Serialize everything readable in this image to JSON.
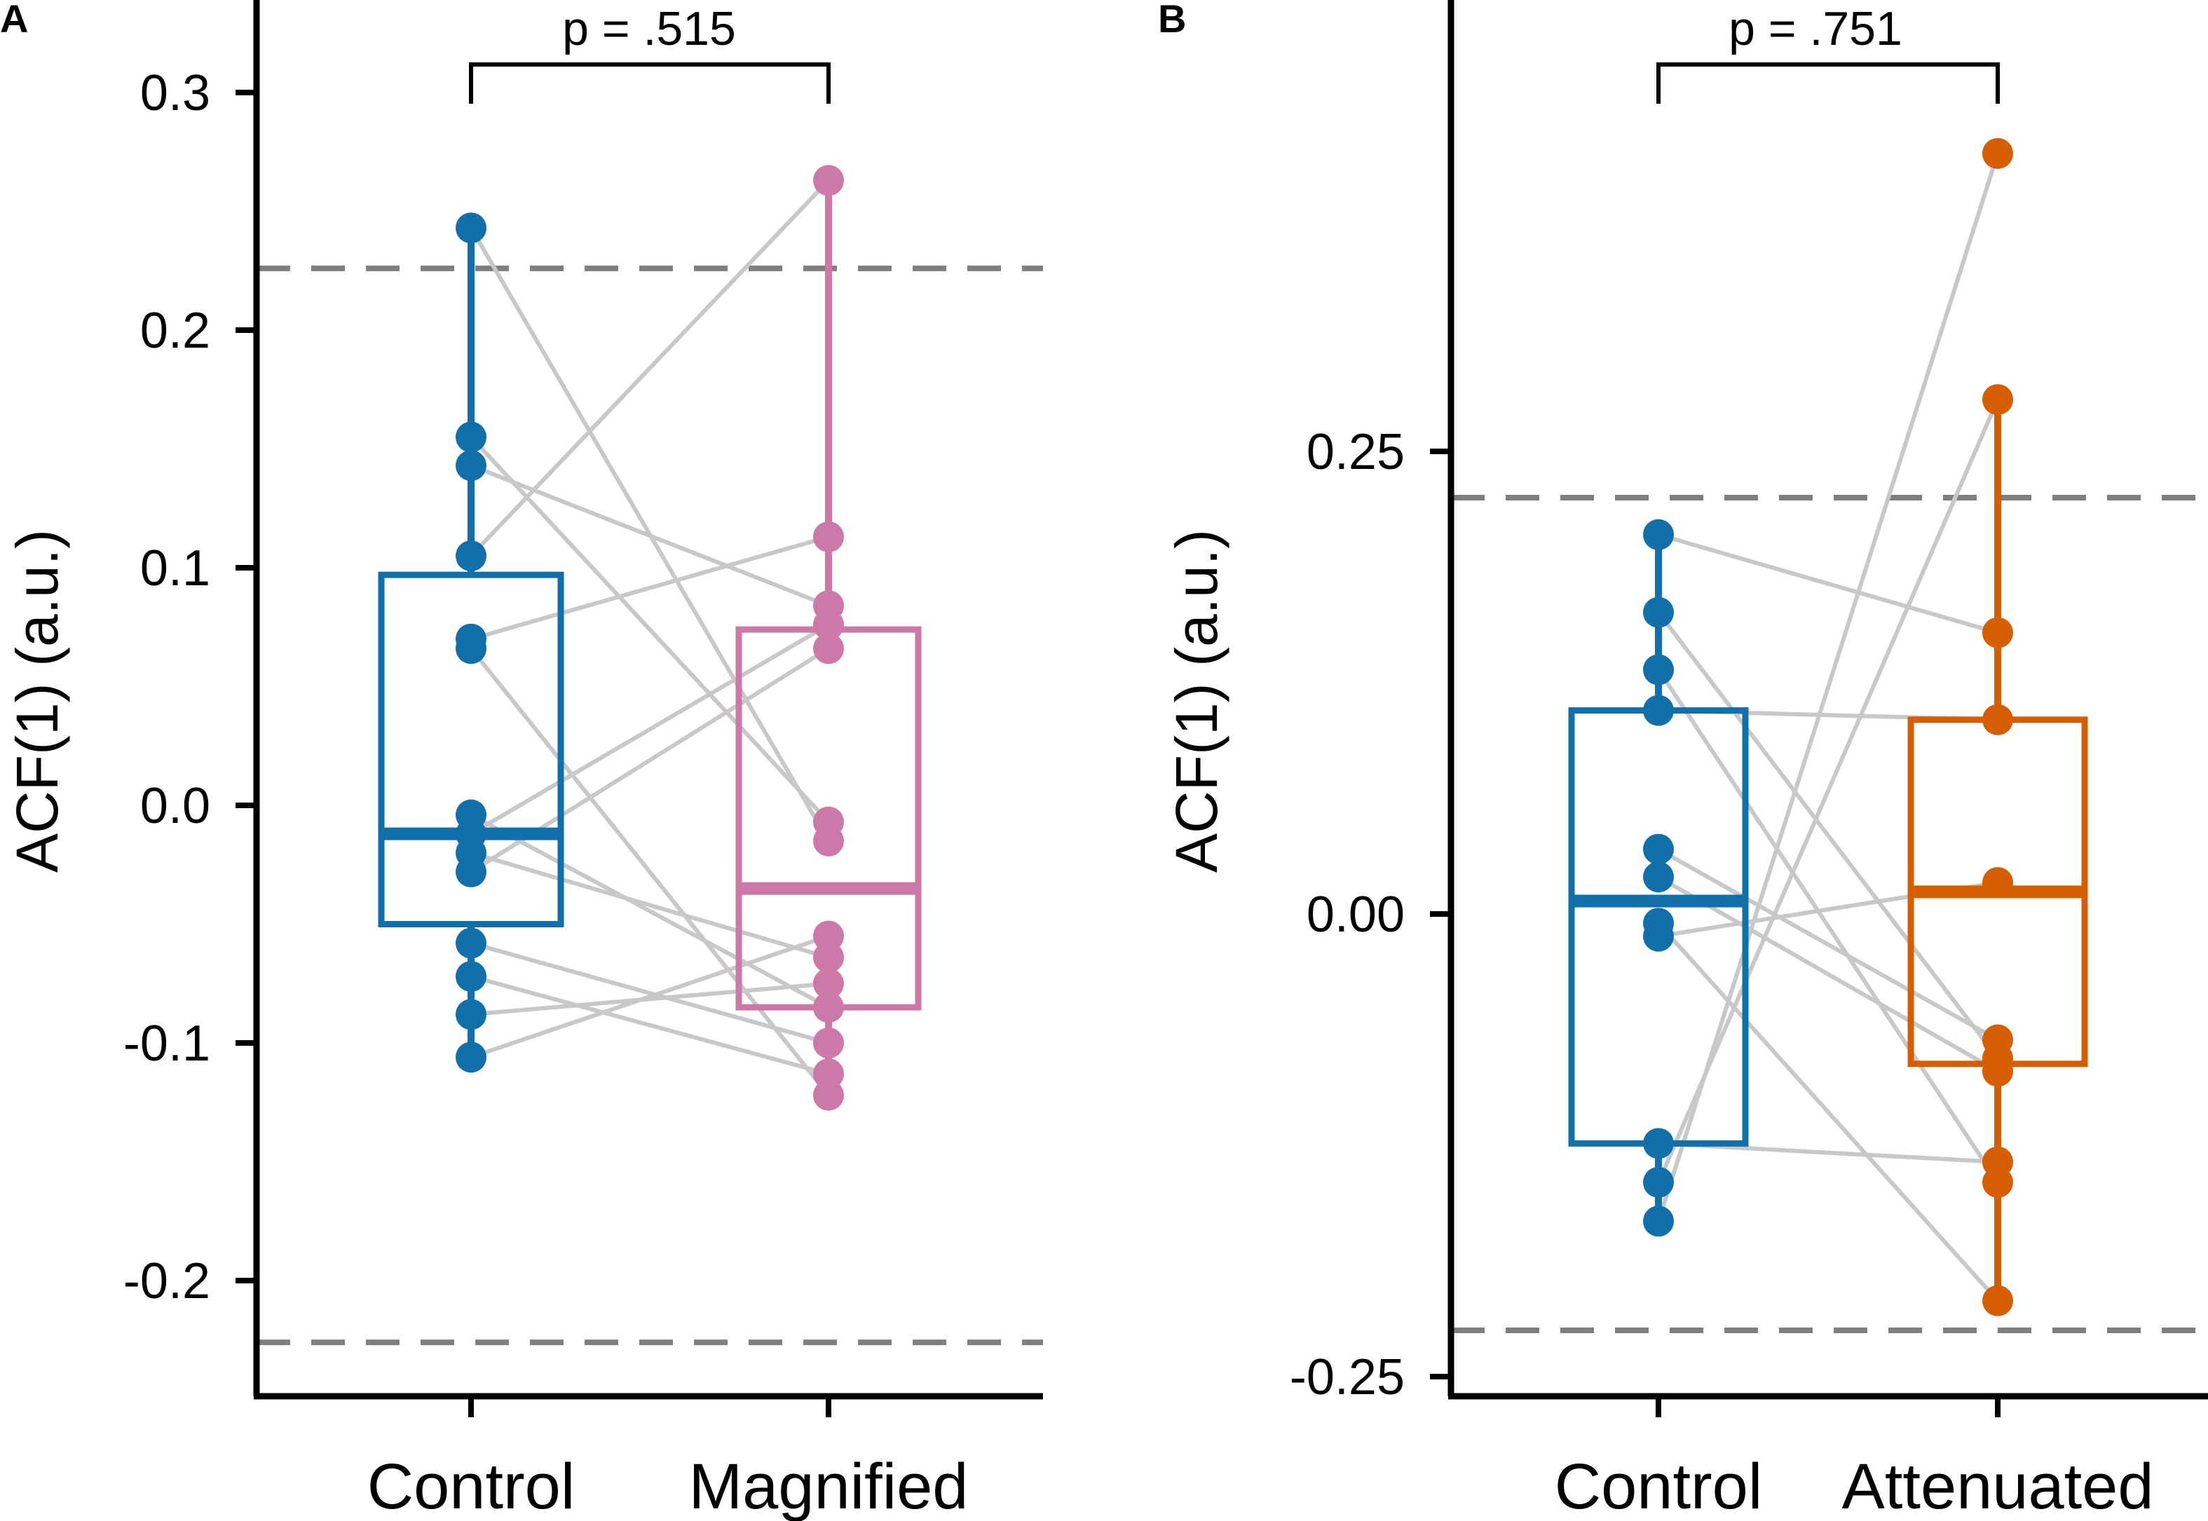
{
  "chart_data": [
    {
      "type": "box",
      "panel_label": "A",
      "ylabel": "ACF(1) (a.u.)",
      "ylim": [
        -0.25,
        0.32
      ],
      "yticks": [
        0.3,
        0.2,
        0.1,
        0.0,
        -0.1,
        -0.2
      ],
      "ytick_labels": [
        "0.3",
        "0.2",
        "0.1",
        "0.0",
        "-0.1",
        "-0.2"
      ],
      "thresholds": [
        0.226,
        -0.226
      ],
      "p_value_label": "p = .515",
      "categories": [
        "Control",
        "Magnified"
      ],
      "colors": [
        "#1170AA",
        "#CC79A7"
      ],
      "boxes": [
        {
          "q1": -0.05,
          "median": -0.012,
          "q3": 0.097,
          "whisker_low": -0.106,
          "whisker_high": 0.243
        },
        {
          "q1": -0.085,
          "median": -0.035,
          "q3": 0.074,
          "whisker_low": -0.123,
          "whisker_high": 0.263
        }
      ],
      "series": [
        {
          "name": "Control",
          "values": [
            0.243,
            0.155,
            0.143,
            0.105,
            0.07,
            0.066,
            -0.004,
            -0.012,
            -0.02,
            -0.028,
            -0.058,
            -0.072,
            -0.088,
            -0.106
          ]
        },
        {
          "name": "Magnified",
          "values": [
            -0.015,
            -0.007,
            0.084,
            0.263,
            0.113,
            -0.122,
            -0.085,
            0.076,
            -0.064,
            0.066,
            -0.1,
            -0.113,
            -0.075,
            -0.055
          ]
        }
      ]
    },
    {
      "type": "box",
      "panel_label": "B",
      "ylabel": "ACF(1) (a.u.)",
      "ylim": [
        -0.25,
        0.5
      ],
      "yticks": [
        0.25,
        0.0,
        -0.25
      ],
      "ytick_labels": [
        "0.25",
        "0.00",
        "-0.25"
      ],
      "thresholds": [
        0.225,
        -0.225
      ],
      "p_value_label": "p = .751",
      "categories": [
        "Control",
        "Attenuated"
      ],
      "colors": [
        "#1170AA",
        "#D55E00"
      ],
      "boxes": [
        {
          "q1": -0.124,
          "median": 0.007,
          "q3": 0.11,
          "whisker_low": -0.166,
          "whisker_high": 0.205
        },
        {
          "q1": -0.081,
          "median": 0.012,
          "q3": 0.105,
          "whisker_low": -0.209,
          "whisker_high": 0.278
        }
      ],
      "series": [
        {
          "name": "Control",
          "values": [
            0.205,
            0.163,
            0.132,
            0.11,
            0.035,
            0.02,
            -0.005,
            -0.012,
            -0.124,
            -0.145,
            -0.166
          ]
        },
        {
          "name": "Attenuated",
          "values": [
            0.152,
            -0.078,
            -0.145,
            0.105,
            -0.068,
            -0.085,
            -0.209,
            0.017,
            -0.134,
            0.278,
            0.411
          ]
        }
      ]
    }
  ]
}
